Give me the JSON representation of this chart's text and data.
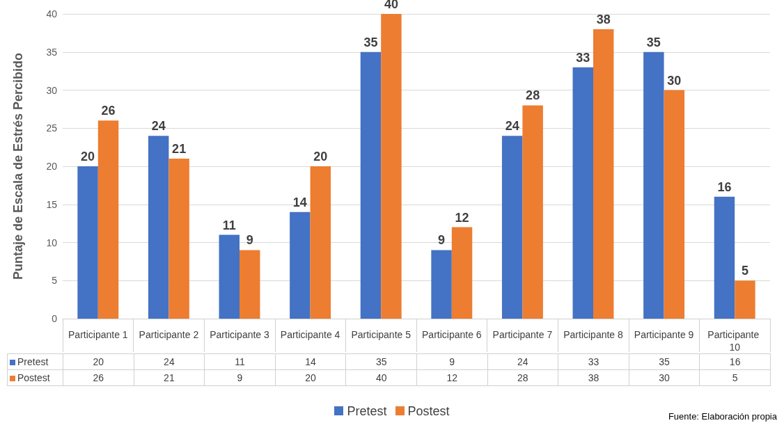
{
  "chart_data": {
    "type": "bar",
    "ylabel": "Puntaje de Escala de Estrés Percibido",
    "categories": [
      "Participante 1",
      "Participante 2",
      "Participante 3",
      "Participante 4",
      "Participante 5",
      "Participante 6",
      "Participante 7",
      "Participante 8",
      "Participante 9",
      "Participante 10"
    ],
    "series": [
      {
        "name": "Pretest",
        "color": "#4472c4",
        "values": [
          20,
          24,
          11,
          14,
          35,
          9,
          24,
          33,
          35,
          16
        ],
        "value_labels": [
          "20",
          "24",
          "11",
          "14",
          "35",
          "9",
          "24",
          "33",
          "35",
          "16"
        ]
      },
      {
        "name": "Postest",
        "color": "#ed7d31",
        "values": [
          26,
          21,
          9,
          20,
          40,
          12,
          28,
          38,
          30,
          5
        ],
        "value_labels": [
          "26",
          "21",
          "9",
          "20",
          "40",
          "12",
          "28",
          "38",
          "30",
          "5"
        ]
      }
    ],
    "ylim": [
      0,
      40
    ],
    "yticks": [
      0,
      5,
      10,
      15,
      20,
      25,
      30,
      35,
      40
    ],
    "grid": "y",
    "legend": "bottom",
    "data_labels": true,
    "annotations": [
      "Fuente: Elaboración propia"
    ]
  }
}
